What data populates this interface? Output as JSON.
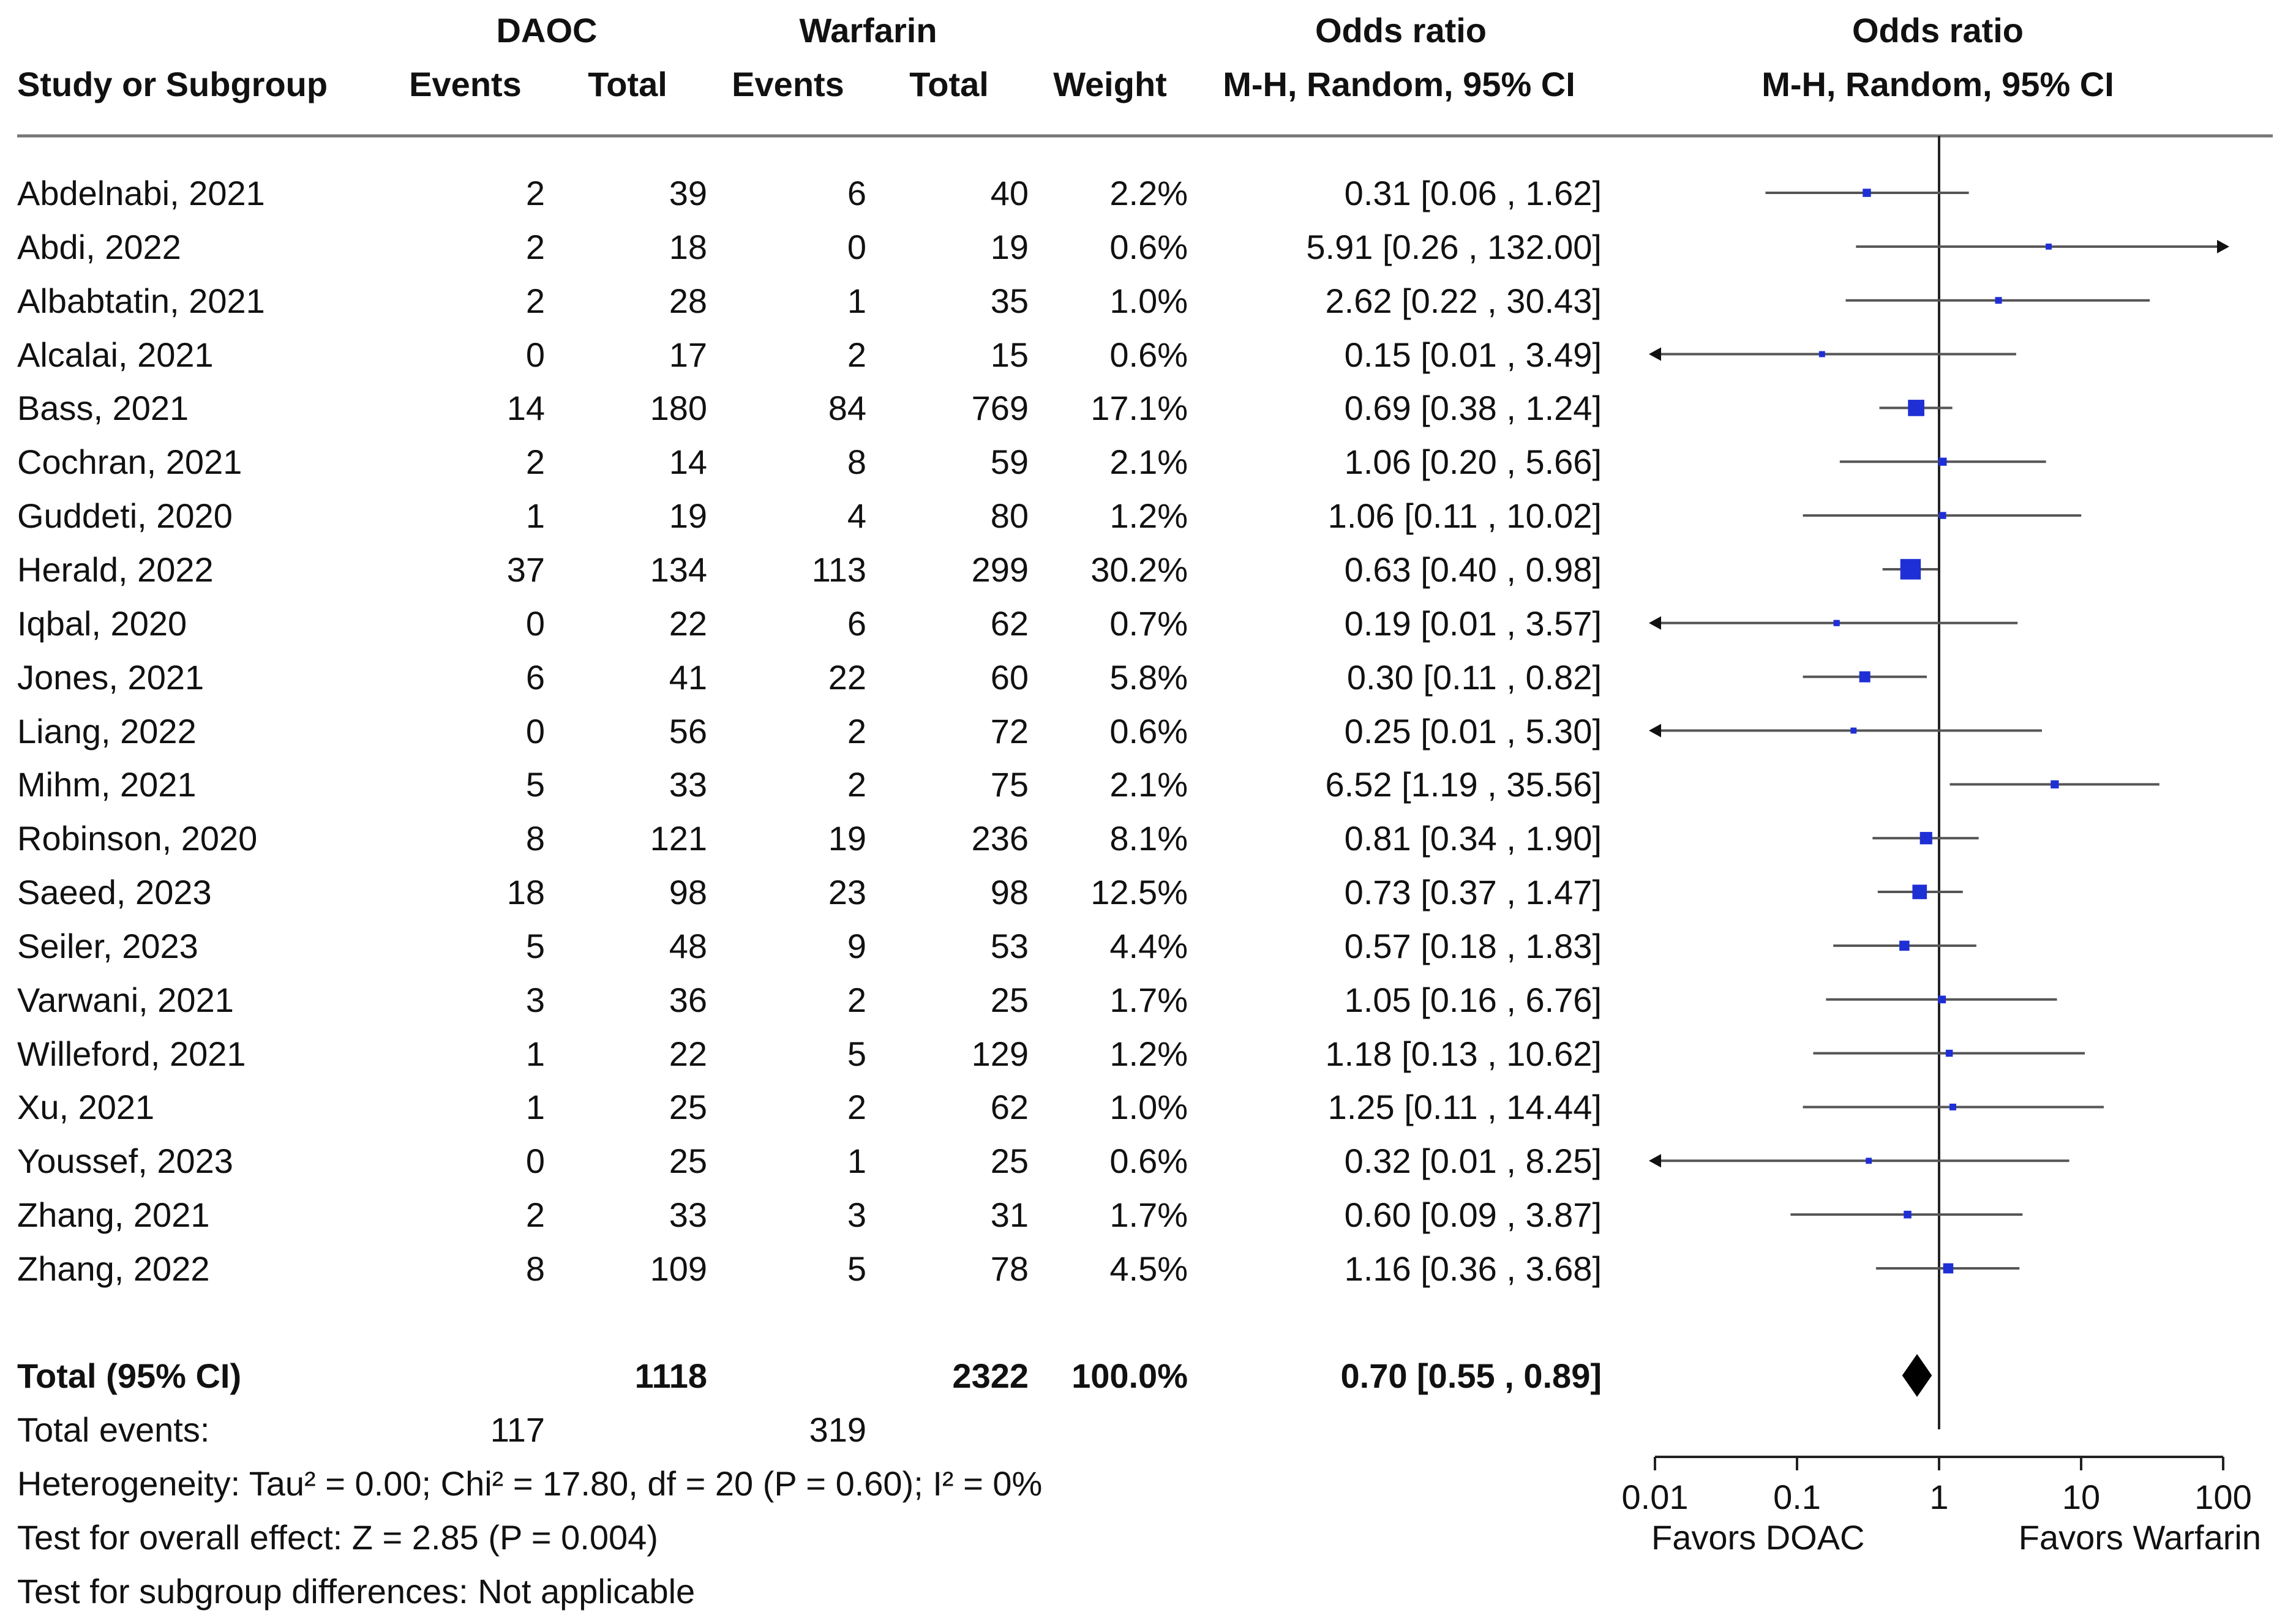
{
  "headers": {
    "group1": "DAOC",
    "group2": "Warfarin",
    "or_group": "Odds ratio",
    "plot_group": "Odds ratio",
    "study": "Study or Subgroup",
    "events1": "Events",
    "total1": "Total",
    "events2": "Events",
    "total2": "Total",
    "weight": "Weight",
    "method": "M-H, Random, 95% CI",
    "plot_method": "M-H, Random, 95% CI"
  },
  "chart_data": {
    "type": "forest",
    "x_scale": "log",
    "xlim": [
      0.01,
      100
    ],
    "ticks": [
      {
        "value": 0.01,
        "label": "0.01"
      },
      {
        "value": 0.1,
        "label": "0.1"
      },
      {
        "value": 1,
        "label": "1"
      },
      {
        "value": 10,
        "label": "10"
      },
      {
        "value": 100,
        "label": "100"
      }
    ],
    "favors_left": "Favors DOAC",
    "favors_right": "Favors Warfarin",
    "studies": [
      {
        "study": "Abdelnabi, 2021",
        "events1": "2",
        "total1": "39",
        "events2": "6",
        "total2": "40",
        "weight_label": "2.2%",
        "weight": 2.2,
        "ci_text": "0.31 [0.06 , 1.62]",
        "or": 0.31,
        "lo": 0.06,
        "hi": 1.62
      },
      {
        "study": "Abdi, 2022",
        "events1": "2",
        "total1": "18",
        "events2": "0",
        "total2": "19",
        "weight_label": "0.6%",
        "weight": 0.6,
        "ci_text": "5.91 [0.26 , 132.00]",
        "or": 5.91,
        "lo": 0.26,
        "hi": 132.0
      },
      {
        "study": "Albabtatin, 2021",
        "events1": "2",
        "total1": "28",
        "events2": "1",
        "total2": "35",
        "weight_label": "1.0%",
        "weight": 1.0,
        "ci_text": "2.62 [0.22 , 30.43]",
        "or": 2.62,
        "lo": 0.22,
        "hi": 30.43
      },
      {
        "study": "Alcalai, 2021",
        "events1": "0",
        "total1": "17",
        "events2": "2",
        "total2": "15",
        "weight_label": "0.6%",
        "weight": 0.6,
        "ci_text": "0.15 [0.01 , 3.49]",
        "or": 0.15,
        "lo": 0.01,
        "hi": 3.49
      },
      {
        "study": "Bass, 2021",
        "events1": "14",
        "total1": "180",
        "events2": "84",
        "total2": "769",
        "weight_label": "17.1%",
        "weight": 17.1,
        "ci_text": "0.69 [0.38 , 1.24]",
        "or": 0.69,
        "lo": 0.38,
        "hi": 1.24
      },
      {
        "study": "Cochran, 2021",
        "events1": "2",
        "total1": "14",
        "events2": "8",
        "total2": "59",
        "weight_label": "2.1%",
        "weight": 2.1,
        "ci_text": "1.06 [0.20 , 5.66]",
        "or": 1.06,
        "lo": 0.2,
        "hi": 5.66
      },
      {
        "study": "Guddeti, 2020",
        "events1": "1",
        "total1": "19",
        "events2": "4",
        "total2": "80",
        "weight_label": "1.2%",
        "weight": 1.2,
        "ci_text": "1.06 [0.11 , 10.02]",
        "or": 1.06,
        "lo": 0.11,
        "hi": 10.02
      },
      {
        "study": "Herald, 2022",
        "events1": "37",
        "total1": "134",
        "events2": "113",
        "total2": "299",
        "weight_label": "30.2%",
        "weight": 30.2,
        "ci_text": "0.63 [0.40 , 0.98]",
        "or": 0.63,
        "lo": 0.4,
        "hi": 0.98
      },
      {
        "study": "Iqbal, 2020",
        "events1": "0",
        "total1": "22",
        "events2": "6",
        "total2": "62",
        "weight_label": "0.7%",
        "weight": 0.7,
        "ci_text": "0.19 [0.01 , 3.57]",
        "or": 0.19,
        "lo": 0.01,
        "hi": 3.57
      },
      {
        "study": "Jones, 2021",
        "events1": "6",
        "total1": "41",
        "events2": "22",
        "total2": "60",
        "weight_label": "5.8%",
        "weight": 5.8,
        "ci_text": "0.30 [0.11 , 0.82]",
        "or": 0.3,
        "lo": 0.11,
        "hi": 0.82
      },
      {
        "study": "Liang, 2022",
        "events1": "0",
        "total1": "56",
        "events2": "2",
        "total2": "72",
        "weight_label": "0.6%",
        "weight": 0.6,
        "ci_text": "0.25 [0.01 , 5.30]",
        "or": 0.25,
        "lo": 0.01,
        "hi": 5.3
      },
      {
        "study": "Mihm, 2021",
        "events1": "5",
        "total1": "33",
        "events2": "2",
        "total2": "75",
        "weight_label": "2.1%",
        "weight": 2.1,
        "ci_text": "6.52 [1.19 , 35.56]",
        "or": 6.52,
        "lo": 1.19,
        "hi": 35.56
      },
      {
        "study": "Robinson, 2020",
        "events1": "8",
        "total1": "121",
        "events2": "19",
        "total2": "236",
        "weight_label": "8.1%",
        "weight": 8.1,
        "ci_text": "0.81 [0.34 , 1.90]",
        "or": 0.81,
        "lo": 0.34,
        "hi": 1.9
      },
      {
        "study": "Saeed, 2023",
        "events1": "18",
        "total1": "98",
        "events2": "23",
        "total2": "98",
        "weight_label": "12.5%",
        "weight": 12.5,
        "ci_text": "0.73 [0.37 , 1.47]",
        "or": 0.73,
        "lo": 0.37,
        "hi": 1.47
      },
      {
        "study": "Seiler, 2023",
        "events1": "5",
        "total1": "48",
        "events2": "9",
        "total2": "53",
        "weight_label": "4.4%",
        "weight": 4.4,
        "ci_text": "0.57 [0.18 , 1.83]",
        "or": 0.57,
        "lo": 0.18,
        "hi": 1.83
      },
      {
        "study": "Varwani, 2021",
        "events1": "3",
        "total1": "36",
        "events2": "2",
        "total2": "25",
        "weight_label": "1.7%",
        "weight": 1.7,
        "ci_text": "1.05 [0.16 , 6.76]",
        "or": 1.05,
        "lo": 0.16,
        "hi": 6.76
      },
      {
        "study": "Willeford, 2021",
        "events1": "1",
        "total1": "22",
        "events2": "5",
        "total2": "129",
        "weight_label": "1.2%",
        "weight": 1.2,
        "ci_text": "1.18 [0.13 , 10.62]",
        "or": 1.18,
        "lo": 0.13,
        "hi": 10.62
      },
      {
        "study": "Xu, 2021",
        "events1": "1",
        "total1": "25",
        "events2": "2",
        "total2": "62",
        "weight_label": "1.0%",
        "weight": 1.0,
        "ci_text": "1.25 [0.11 , 14.44]",
        "or": 1.25,
        "lo": 0.11,
        "hi": 14.44
      },
      {
        "study": "Youssef, 2023",
        "events1": "0",
        "total1": "25",
        "events2": "1",
        "total2": "25",
        "weight_label": "0.6%",
        "weight": 0.6,
        "ci_text": "0.32 [0.01 , 8.25]",
        "or": 0.32,
        "lo": 0.01,
        "hi": 8.25
      },
      {
        "study": "Zhang, 2021",
        "events1": "2",
        "total1": "33",
        "events2": "3",
        "total2": "31",
        "weight_label": "1.7%",
        "weight": 1.7,
        "ci_text": "0.60 [0.09 , 3.87]",
        "or": 0.6,
        "lo": 0.09,
        "hi": 3.87
      },
      {
        "study": "Zhang, 2022",
        "events1": "8",
        "total1": "109",
        "events2": "5",
        "total2": "78",
        "weight_label": "4.5%",
        "weight": 4.5,
        "ci_text": "1.16 [0.36 , 3.68]",
        "or": 1.16,
        "lo": 0.36,
        "hi": 3.68
      }
    ],
    "total": {
      "label": "Total (95% CI)",
      "total1": "1118",
      "total2": "2322",
      "weight": "100.0%",
      "ci_text": "0.70 [0.55 , 0.89]",
      "or": 0.7,
      "lo": 0.55,
      "hi": 0.89
    }
  },
  "footer": {
    "events_label": "Total events:",
    "events1": "117",
    "events2": "319",
    "heterogeneity": "Heterogeneity: Tau² = 0.00; Chi² = 17.80, df = 20 (P = 0.60); I² = 0%",
    "overall": "Test for overall effect: Z = 2.85 (P = 0.004)",
    "subgroup": "Test for subgroup differences: Not applicable"
  },
  "colors": {
    "marker": "#1f2fd6",
    "line": "#555555",
    "axis": "#222222",
    "diamond": "#000000"
  }
}
